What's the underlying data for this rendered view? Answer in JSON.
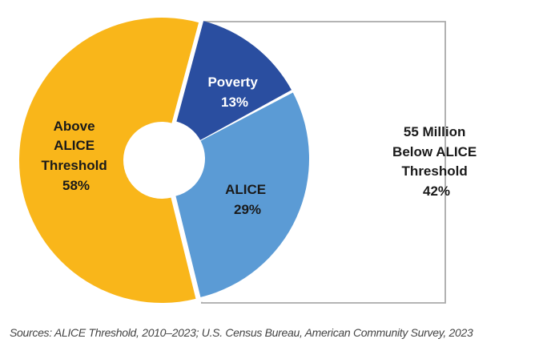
{
  "chart_data": {
    "type": "pie",
    "style": "exploded-donut",
    "categories": [
      "Above ALICE Threshold",
      "Poverty",
      "ALICE"
    ],
    "values": [
      58,
      13,
      29
    ],
    "unit": "%",
    "slices": [
      {
        "name": "above",
        "label_lines": [
          "Above",
          "ALICE",
          "Threshold",
          "58%"
        ],
        "value": 58,
        "color": "#F9B61A",
        "text_color": "#1a1a1a"
      },
      {
        "name": "poverty",
        "label_lines": [
          "Poverty",
          "13%"
        ],
        "value": 13,
        "color": "#2A4EA0",
        "text_color": "#ffffff"
      },
      {
        "name": "alice",
        "label_lines": [
          "ALICE",
          "29%"
        ],
        "value": 29,
        "color": "#5B9BD5",
        "text_color": "#1a1a1a"
      }
    ],
    "callout": {
      "label_lines": [
        "55 Million",
        "Below ALICE",
        "Threshold",
        "42%"
      ],
      "value": 42,
      "border_color": "#AAAAAA"
    },
    "legend": "none",
    "grid": false
  },
  "footer": {
    "source": "Sources: ALICE Threshold, 2010–2023; U.S. Census Bureau, American Community Survey, 2023"
  }
}
